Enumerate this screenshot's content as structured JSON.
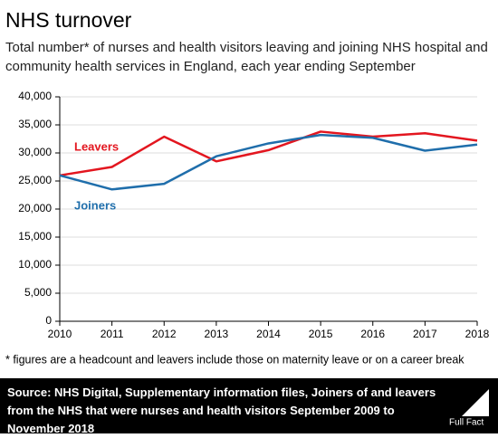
{
  "header": {
    "title": "NHS turnover",
    "subtitle": "Total number* of nurses and health visitors leaving and joining NHS hospital and community health services in England, each year ending September"
  },
  "chart_data": {
    "type": "line",
    "x": [
      2010,
      2011,
      2012,
      2013,
      2014,
      2015,
      2016,
      2017,
      2018
    ],
    "series": [
      {
        "name": "Leavers",
        "color": "#e3161f",
        "values": [
          26000,
          27500,
          32900,
          28500,
          30500,
          33800,
          32900,
          33500,
          32200
        ]
      },
      {
        "name": "Joiners",
        "color": "#1f6eab",
        "values": [
          26000,
          23500,
          24500,
          29400,
          31700,
          33200,
          32700,
          30400,
          31500
        ]
      }
    ],
    "xlim": [
      2010,
      2018
    ],
    "xticks": [
      2010,
      2011,
      2012,
      2013,
      2014,
      2015,
      2016,
      2017,
      2018
    ],
    "ylim": [
      0,
      40000
    ],
    "yticks": [
      0,
      {
        "value": 5000,
        "label": "5,000"
      },
      {
        "value": 10000,
        "label": "10,000"
      },
      {
        "value": 15000,
        "label": "15,000"
      },
      {
        "value": 20000,
        "label": "20,000"
      },
      {
        "value": 25000,
        "label": "25,000"
      },
      {
        "value": 30000,
        "label": "30,000"
      },
      {
        "value": 35000,
        "label": "35,000"
      },
      {
        "value": 40000,
        "label": "40,000"
      }
    ],
    "grid": true
  },
  "footnote": "* figures are a headcount and leavers include those on maternity leave or on a career break",
  "footer": {
    "source_label": "Source:",
    "source": "NHS Digital, Supplementary information files, Joiners of and leavers from the NHS that were nurses and health visitors September 2009 to November 2018",
    "logo": "Full Fact"
  }
}
